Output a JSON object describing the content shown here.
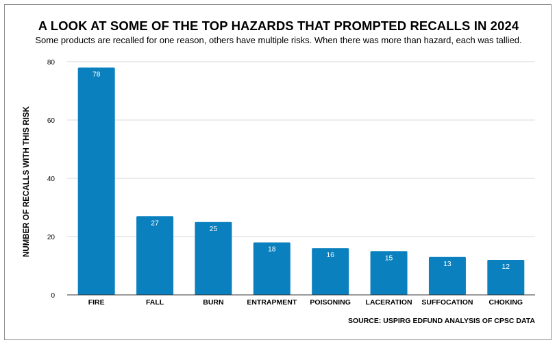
{
  "chart_data": {
    "type": "bar",
    "title": "A LOOK AT SOME OF THE TOP HAZARDS THAT PROMPTED RECALLS IN 2024",
    "subtitle": "Some products are recalled for one reason, others have multiple risks. When there was more than hazard, each was tallied.",
    "ylabel": "NUMBER OF RECALLS WITH THIS RISK",
    "xlabel": "",
    "categories": [
      "FIRE",
      "FALL",
      "BURN",
      "ENTRAPMENT",
      "POISONING",
      "LACERATION",
      "SUFFOCATION",
      "CHOKING"
    ],
    "values": [
      78,
      27,
      25,
      18,
      16,
      15,
      13,
      12
    ],
    "data_labels": [
      "78",
      "27",
      "25",
      "18",
      "16",
      "15",
      "13",
      "12"
    ],
    "ylim": [
      0,
      80
    ],
    "yticks": [
      0,
      20,
      40,
      60,
      80
    ],
    "ytick_labels": [
      "0",
      "20",
      "40",
      "60",
      "80"
    ],
    "grid": true,
    "bar_color": "#0a80be",
    "source": "SOURCE: USPIRG EDFUND ANALYSIS OF CPSC DATA"
  }
}
